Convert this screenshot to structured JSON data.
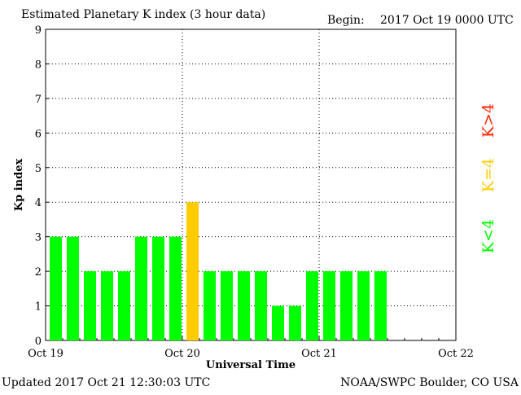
{
  "chart_data": {
    "type": "bar",
    "title": "Estimated Planetary K index (3 hour data)",
    "begin_label": "Begin:",
    "begin_value": "2017 Oct 19 0000 UTC",
    "xlabel": "Universal Time",
    "ylabel": "Kp index",
    "ylim": [
      0,
      9
    ],
    "yticks": [
      0,
      1,
      2,
      3,
      4,
      5,
      6,
      7,
      8,
      9
    ],
    "x_tick_labels": [
      "Oct 19",
      "Oct 20",
      "Oct 21",
      "Oct 22"
    ],
    "interval_hours": 3,
    "values": [
      3,
      3,
      2,
      2,
      2,
      3,
      3,
      3,
      4,
      2,
      2,
      2,
      2,
      1,
      1,
      2,
      2,
      2,
      2,
      2
    ],
    "grid": true,
    "colors": {
      "below_4": "#00ff00",
      "equal_4": "#ffcc00",
      "above_4": "#ff2200"
    },
    "legend": [
      {
        "label": "K>4",
        "color": "#ff2200"
      },
      {
        "label": "K=4",
        "color": "#ffcc00"
      },
      {
        "label": "K<4",
        "color": "#00ff00"
      }
    ],
    "legend_position": "right"
  },
  "footer": {
    "updated": "Updated 2017 Oct 21 12:30:03 UTC",
    "source": "NOAA/SWPC Boulder, CO USA"
  }
}
